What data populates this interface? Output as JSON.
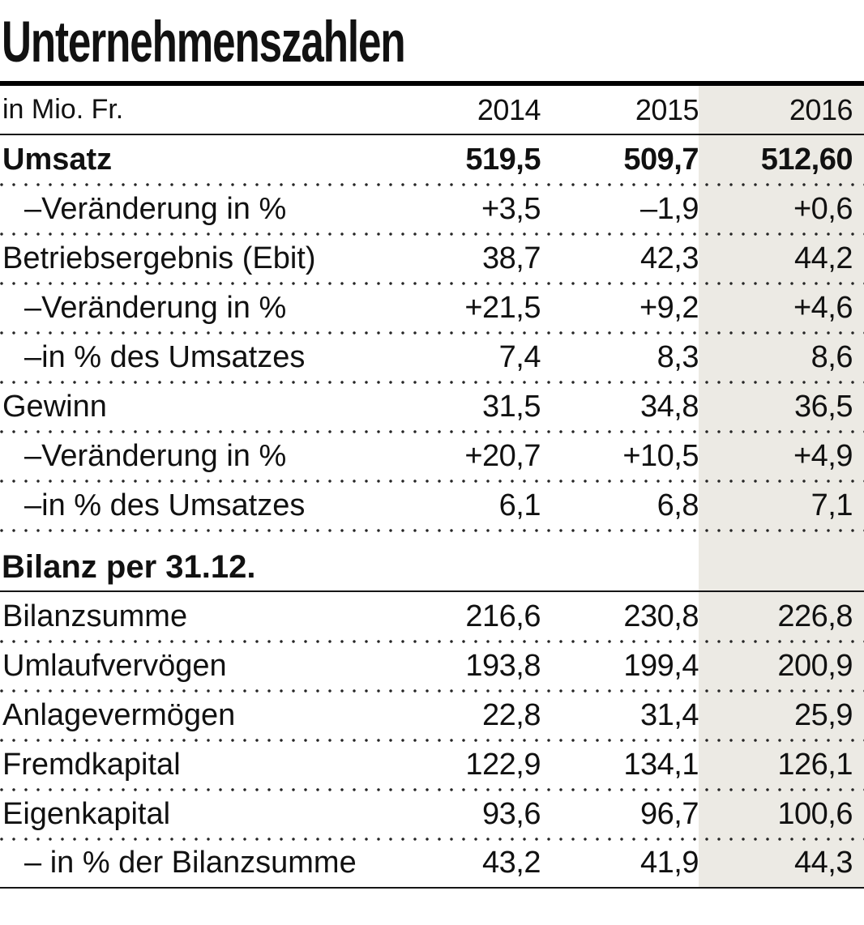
{
  "title": "Unternehmenszahlen",
  "colors": {
    "highlight_column_bg": "#ECEAE4",
    "rule_color": "#161616",
    "text_color": "#111111"
  },
  "chart_data": {
    "type": "table",
    "title": "Unternehmenszahlen",
    "unit": "in Mio. Fr.",
    "columns": [
      "2014",
      "2015",
      "2016"
    ],
    "highlight_column": "2016",
    "sections": [
      {
        "heading": "",
        "rows": [
          {
            "label": "Umsatz",
            "values": [
              "519,5",
              "509,7",
              "512,60"
            ]
          },
          {
            "label": "–Veränderung in %",
            "values": [
              "+3,5",
              "–1,9",
              "+0,6"
            ]
          },
          {
            "label": "Betriebsergebnis (Ebit)",
            "values": [
              "38,7",
              "42,3",
              "44,2"
            ]
          },
          {
            "label": "–Veränderung in %",
            "values": [
              "+21,5",
              "+9,2",
              "+4,6"
            ]
          },
          {
            "label": "–in % des Umsatzes",
            "values": [
              "7,4",
              "8,3",
              "8,6"
            ]
          },
          {
            "label": "Gewinn",
            "values": [
              "31,5",
              "34,8",
              "36,5"
            ]
          },
          {
            "label": "–Veränderung in %",
            "values": [
              "+20,7",
              "+10,5",
              "+4,9"
            ]
          },
          {
            "label": "–in % des Umsatzes",
            "values": [
              "6,1",
              "6,8",
              "7,1"
            ]
          }
        ]
      },
      {
        "heading": "Bilanz per 31.12.",
        "rows": [
          {
            "label": "Bilanzsumme",
            "values": [
              "216,6",
              "230,8",
              "226,8"
            ]
          },
          {
            "label": "Umlaufvervögen",
            "values": [
              "193,8",
              "199,4",
              "200,9"
            ]
          },
          {
            "label": "Anlagevermögen",
            "values": [
              "22,8",
              "31,4",
              "25,9"
            ]
          },
          {
            "label": "Fremdkapital",
            "values": [
              "122,9",
              "134,1",
              "126,1"
            ]
          },
          {
            "label": "Eigenkapital",
            "values": [
              "93,6",
              "96,7",
              "100,6"
            ]
          },
          {
            "label": "– in % der Bilanzsumme",
            "values": [
              "43,2",
              "41,9",
              "44,3"
            ]
          }
        ]
      }
    ]
  }
}
